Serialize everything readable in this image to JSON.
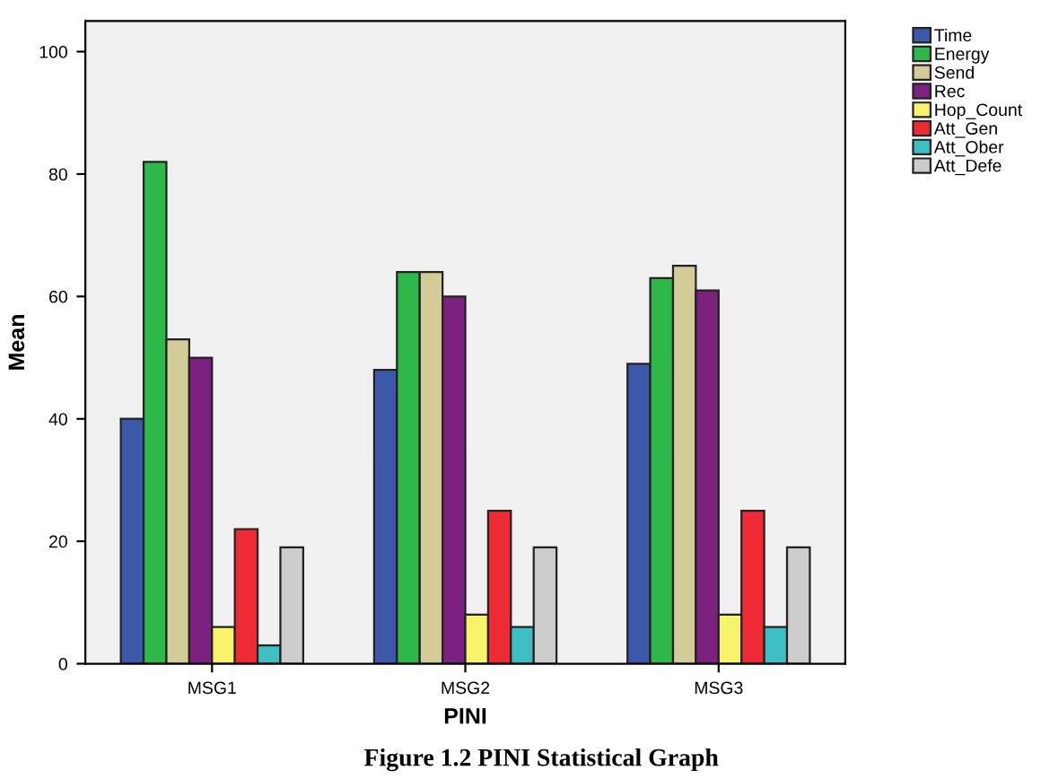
{
  "chart_data": {
    "type": "bar",
    "xlabel": "PINI",
    "ylabel": "Mean",
    "categories": [
      "MSG1",
      "MSG2",
      "MSG3"
    ],
    "series": [
      {
        "name": "Time",
        "color": "#3e58a9",
        "values": [
          40,
          48,
          49
        ]
      },
      {
        "name": "Energy",
        "color": "#2eb84a",
        "values": [
          82,
          64,
          63
        ]
      },
      {
        "name": "Send",
        "color": "#d4cc98",
        "values": [
          53,
          64,
          65
        ]
      },
      {
        "name": "Rec",
        "color": "#7b2280",
        "values": [
          50,
          60,
          61
        ]
      },
      {
        "name": "Hop_Count",
        "color": "#f8f36a",
        "values": [
          6,
          8,
          8
        ]
      },
      {
        "name": "Att_Gen",
        "color": "#ee2a35",
        "values": [
          22,
          25,
          25
        ]
      },
      {
        "name": "Att_Ober",
        "color": "#3ebfc4",
        "values": [
          3,
          6,
          6
        ]
      },
      {
        "name": "Att_Defe",
        "color": "#cccccc",
        "values": [
          19,
          19,
          19
        ]
      }
    ],
    "ylim": [
      0,
      105
    ],
    "yticks": [
      0,
      20,
      40,
      60,
      80,
      100
    ],
    "grid": false,
    "legend": "top right",
    "annotations": [
      "Figure 1.2 PINI Statistical Graph"
    ]
  }
}
